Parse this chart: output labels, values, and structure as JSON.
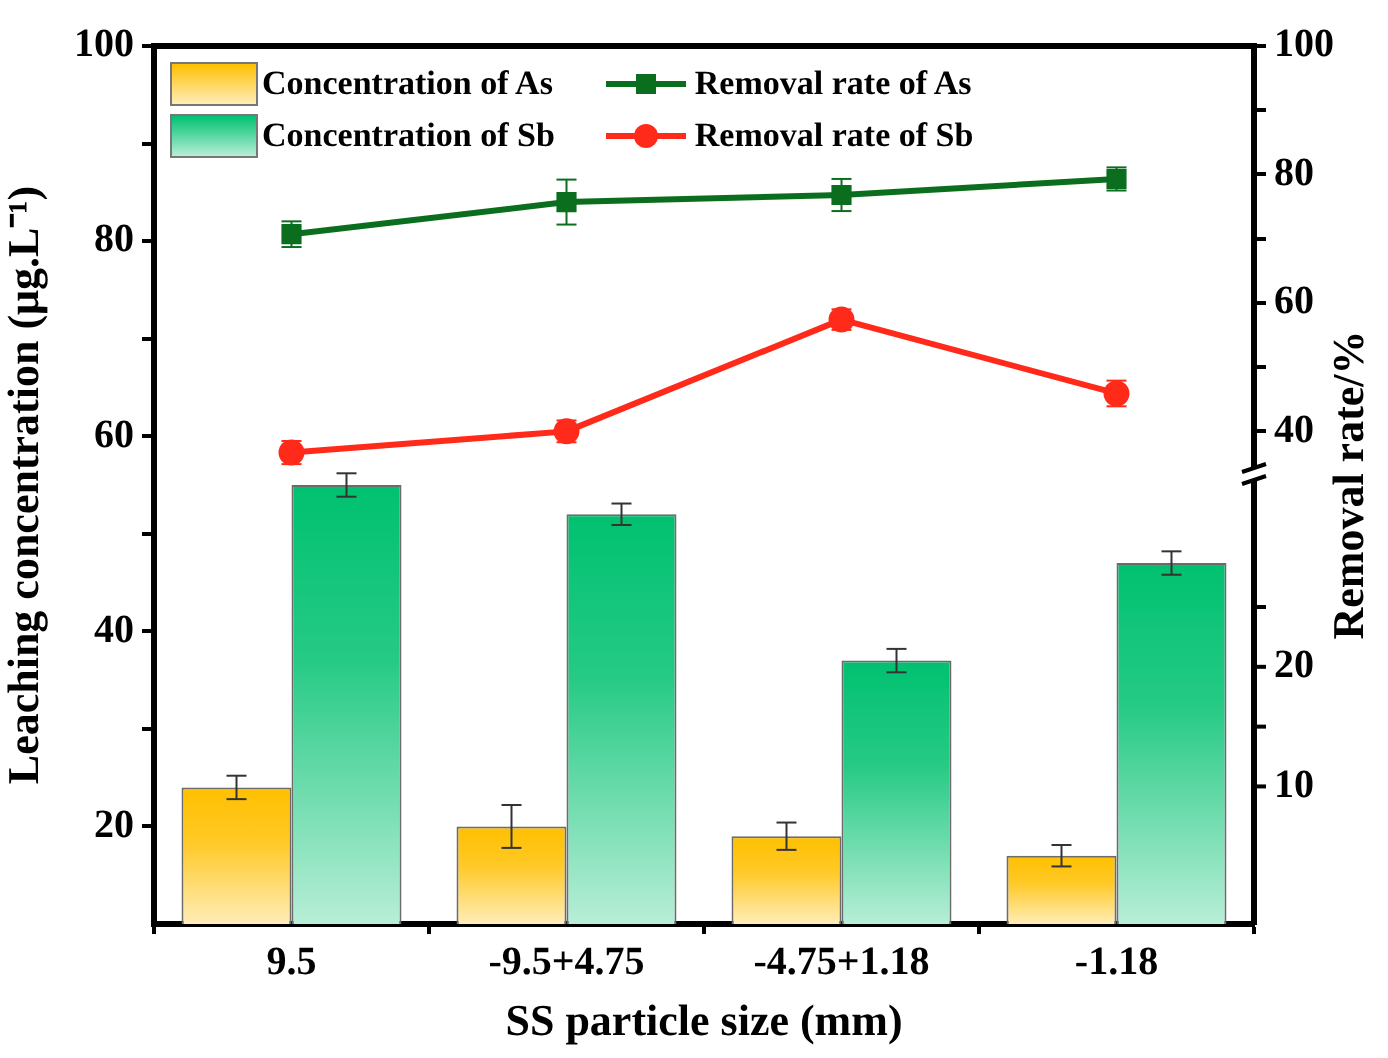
{
  "chart_data": {
    "type": "bar",
    "xlabel": "SS particle size (mm)",
    "ylabel": "Leaching concentration (μg.L⁻¹)",
    "y2label": "Removal rate/%",
    "categories": [
      "9.5",
      "-9.5+4.75",
      "-4.75+1.18",
      "-1.18"
    ],
    "ylim": [
      10,
      100
    ],
    "yticks": [
      20,
      {
        "value": 30,
        "label": null
      },
      40,
      {
        "value": 50,
        "label": null
      },
      60,
      {
        "value": 70,
        "label": null
      },
      80,
      {
        "value": 90,
        "label": null
      },
      100
    ],
    "y2lim": [
      -36.7,
      100
    ],
    "y2ticks": [
      40,
      {
        "value": 50,
        "label": null
      },
      60,
      {
        "value": 70,
        "label": null
      },
      80,
      {
        "value": 90,
        "label": null
      },
      100
    ],
    "y3lim": [
      -1.5,
      71.9
    ],
    "y3ticks": [
      10,
      {
        "value": 15,
        "label": null
      },
      20,
      {
        "value": 25,
        "label": null
      }
    ],
    "legend": "top left",
    "grid": false,
    "series": [
      {
        "name": "Concentration of As",
        "color": "#ffc000",
        "values": [
          24,
          20,
          19,
          17
        ],
        "errors": [
          1.2,
          2.2,
          1.4,
          1.1
        ]
      },
      {
        "name": "Concentration of Sb",
        "color": "#00c170",
        "values": [
          55,
          52,
          37,
          47
        ],
        "errors": [
          1.2,
          1.1,
          1.2,
          1.2
        ]
      },
      {
        "name": "Removal rate of As",
        "type": "line",
        "axis": "y2",
        "marker": "square",
        "color": "#0b6e1f",
        "values": [
          70.7,
          75.7,
          76.8,
          79.3
        ],
        "errors": [
          2,
          3.5,
          2.5,
          1.8
        ]
      },
      {
        "name": "Removal rate of Sb",
        "type": "line",
        "axis": "y2",
        "marker": "circle",
        "color": "#ff2a1a",
        "values": [
          36.7,
          40,
          57.4,
          45.9
        ],
        "errors": [
          1.8,
          1.7,
          1.6,
          2
        ]
      }
    ]
  }
}
